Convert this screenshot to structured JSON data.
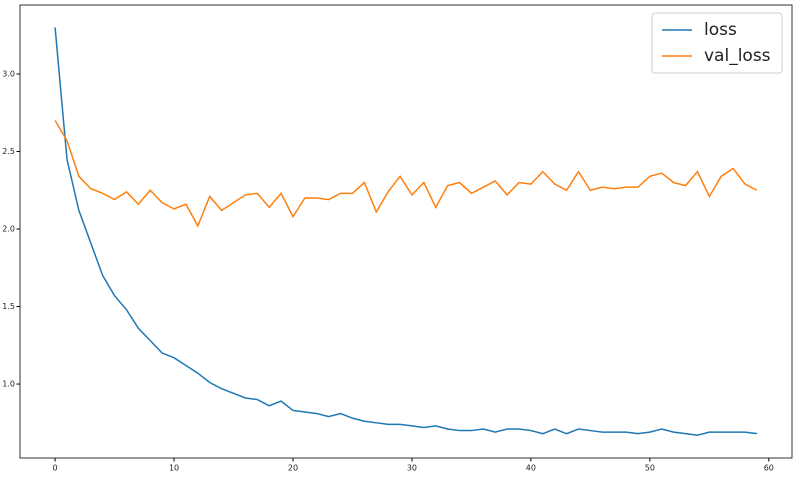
{
  "chart_data": {
    "type": "line",
    "x": [
      0,
      1,
      2,
      3,
      4,
      5,
      6,
      7,
      8,
      9,
      10,
      11,
      12,
      13,
      14,
      15,
      16,
      17,
      18,
      19,
      20,
      21,
      22,
      23,
      24,
      25,
      26,
      27,
      28,
      29,
      30,
      31,
      32,
      33,
      34,
      35,
      36,
      37,
      38,
      39,
      40,
      41,
      42,
      43,
      44,
      45,
      46,
      47,
      48,
      49,
      50,
      51,
      52,
      53,
      54,
      55,
      56,
      57,
      58,
      59
    ],
    "series": [
      {
        "name": "loss",
        "color": "#1f77b4",
        "values": [
          3.3,
          2.45,
          2.12,
          1.91,
          1.7,
          1.57,
          1.48,
          1.36,
          1.28,
          1.2,
          1.17,
          1.12,
          1.07,
          1.01,
          0.97,
          0.94,
          0.91,
          0.9,
          0.86,
          0.89,
          0.83,
          0.82,
          0.81,
          0.79,
          0.81,
          0.78,
          0.76,
          0.75,
          0.74,
          0.74,
          0.73,
          0.72,
          0.73,
          0.71,
          0.7,
          0.7,
          0.71,
          0.69,
          0.71,
          0.71,
          0.7,
          0.68,
          0.71,
          0.68,
          0.71,
          0.7,
          0.69,
          0.69,
          0.69,
          0.68,
          0.69,
          0.71,
          0.69,
          0.68,
          0.67,
          0.69,
          0.69,
          0.69,
          0.69,
          0.68
        ]
      },
      {
        "name": "val_loss",
        "color": "#ff7f0e",
        "values": [
          2.7,
          2.57,
          2.34,
          2.26,
          2.23,
          2.19,
          2.24,
          2.16,
          2.25,
          2.17,
          2.13,
          2.16,
          2.02,
          2.21,
          2.12,
          2.17,
          2.22,
          2.23,
          2.14,
          2.23,
          2.08,
          2.2,
          2.2,
          2.19,
          2.23,
          2.23,
          2.3,
          2.11,
          2.24,
          2.34,
          2.22,
          2.3,
          2.14,
          2.28,
          2.3,
          2.23,
          2.27,
          2.31,
          2.22,
          2.3,
          2.29,
          2.37,
          2.29,
          2.25,
          2.37,
          2.25,
          2.27,
          2.26,
          2.27,
          2.27,
          2.34,
          2.36,
          2.3,
          2.28,
          2.37,
          2.21,
          2.34,
          2.39,
          2.29,
          2.25
        ]
      }
    ],
    "xlim": [
      -2.95,
      61.95
    ],
    "ylim": [
      0.523,
      3.445
    ],
    "xticks": [
      0,
      10,
      20,
      30,
      40,
      50,
      60
    ],
    "yticks": [
      {
        "value": 1.0,
        "label": "1.0"
      },
      1.5,
      {
        "value": 2.0,
        "label": "2.0"
      },
      2.5,
      {
        "value": 3.0,
        "label": "3.0"
      }
    ],
    "legend": "upper right"
  }
}
